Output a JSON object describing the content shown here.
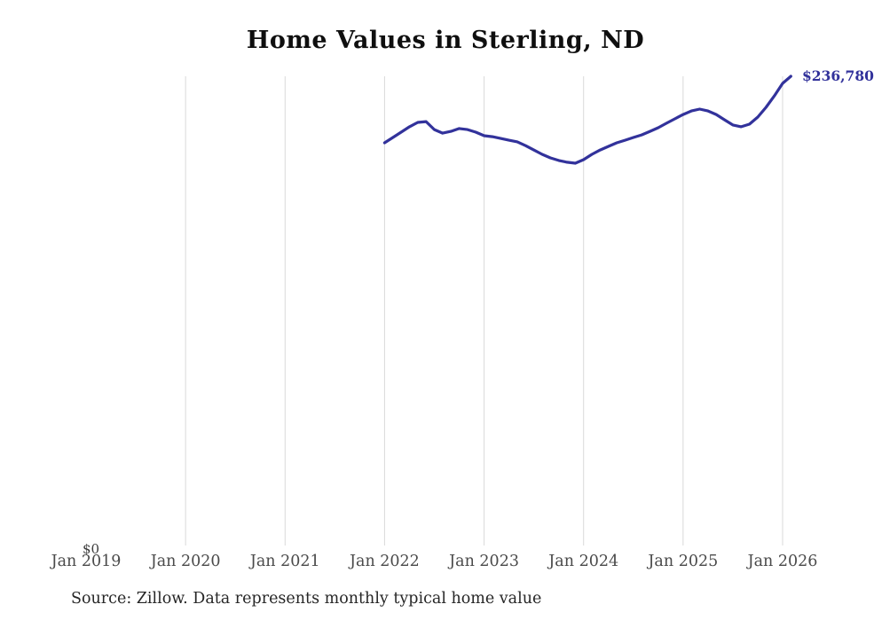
{
  "chart_data": {
    "type": "line",
    "title": "Home Values in Sterling, ND",
    "end_label": "$236,780",
    "line_color": "#32329B",
    "gridline_color": "#D9D9D9",
    "grid": "vertical-only",
    "legend": "none",
    "y_axis": {
      "zero_label": "$0",
      "ylim": [
        0,
        236780
      ]
    },
    "x_axis": {
      "tick_labels": [
        "Jan 2019",
        "Jan 2020",
        "Jan 2021",
        "Jan 2022",
        "Jan 2023",
        "Jan 2024",
        "Jan 2025",
        "Jan 2026"
      ],
      "months_between_ticks": 12,
      "first_tick_has_gridline": false
    },
    "series": [
      {
        "name": "Monthly typical home value",
        "frequency": "monthly",
        "start_month": "Jan 2022",
        "end_month": "Feb 2026",
        "start_tick_index": 3,
        "values": [
          203200,
          205900,
          208600,
          211300,
          213500,
          213900,
          209900,
          208100,
          209000,
          210400,
          209900,
          208600,
          206800,
          206300,
          205400,
          204500,
          203700,
          201800,
          199600,
          197400,
          195600,
          194300,
          193400,
          192900,
          194700,
          197400,
          199600,
          201400,
          203200,
          204500,
          205900,
          207200,
          209000,
          210800,
          213100,
          215300,
          217500,
          219300,
          220200,
          219300,
          217500,
          214800,
          212200,
          211300,
          212600,
          216200,
          221100,
          226900,
          233200,
          236780
        ]
      }
    ]
  },
  "footer": {
    "source": "Source: Zillow. Data represents monthly typical home value"
  }
}
